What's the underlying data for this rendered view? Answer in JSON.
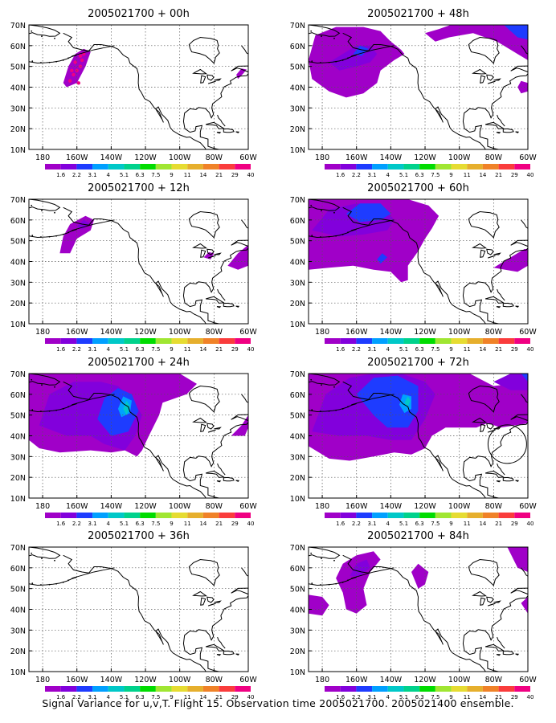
{
  "footer": "Signal Variance for u,v,T. Flight 15. Observation time 2005021700. 2005021400 ensemble.",
  "y_ticks": [
    "10N",
    "20N",
    "30N",
    "40N",
    "50N",
    "60N",
    "70N"
  ],
  "x_ticks": [
    "180",
    "160W",
    "140W",
    "120W",
    "100W",
    "80W",
    "60W"
  ],
  "legend": {
    "labels": [
      "1.6",
      "2.2",
      "3.1",
      "4",
      "5.1",
      "6.3",
      "7.5",
      "9",
      "11",
      "14",
      "21",
      "29",
      "40"
    ],
    "colors": [
      "#a000c8",
      "#8200dc",
      "#1e3cff",
      "#00a0ff",
      "#00c8c8",
      "#00d28c",
      "#00dc00",
      "#a0e632",
      "#e6dc32",
      "#e6af2d",
      "#f08228",
      "#fa3c3c",
      "#f00082"
    ]
  },
  "panels": [
    {
      "title": "2005021700 + 00h"
    },
    {
      "title": "2005021700 + 48h"
    },
    {
      "title": "2005021700 + 12h"
    },
    {
      "title": "2005021700 + 60h"
    },
    {
      "title": "2005021700 + 24h"
    },
    {
      "title": "2005021700 + 72h"
    },
    {
      "title": "2005021700 + 84h"
    },
    {
      "title": "2005021700 + 36h"
    }
  ]
}
